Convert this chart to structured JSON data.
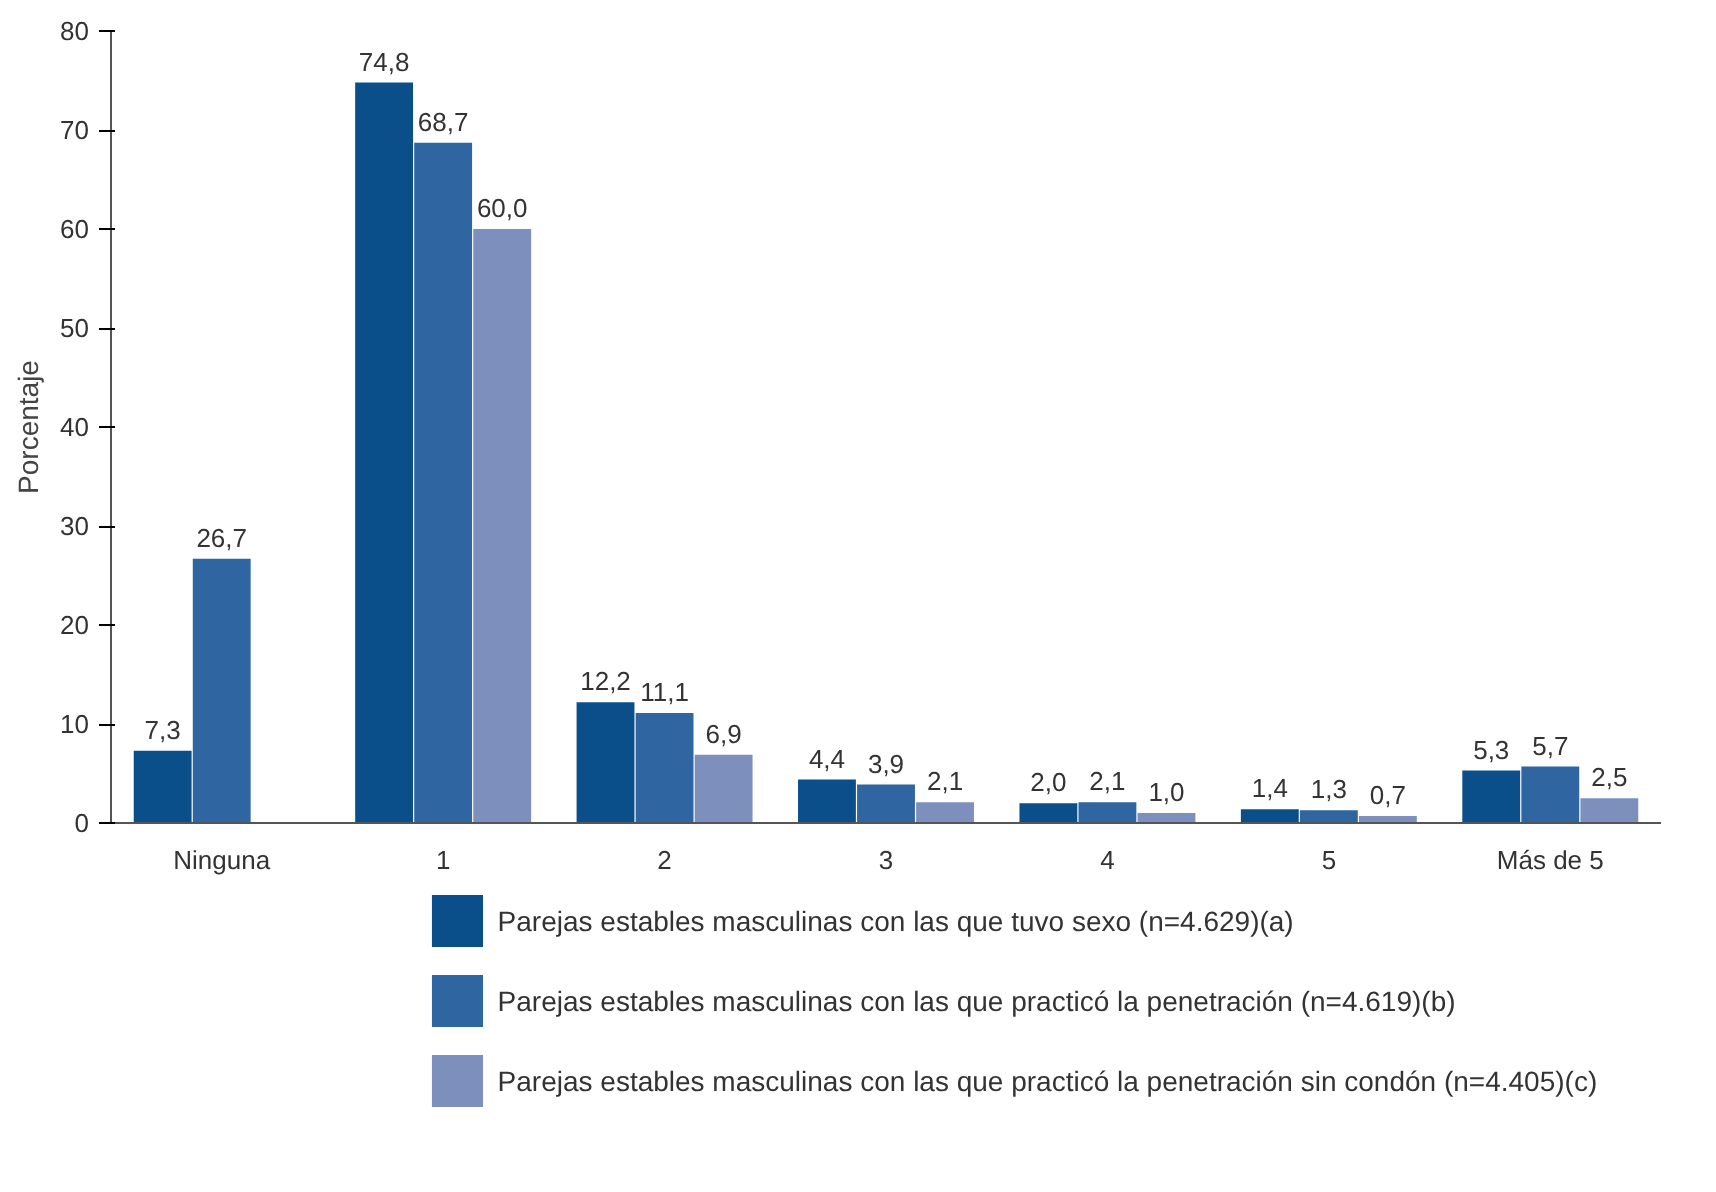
{
  "chart_data": {
    "type": "bar",
    "ylabel": "Porcentaje",
    "categories": [
      "Ninguna",
      "1",
      "2",
      "3",
      "4",
      "5",
      "Más de 5"
    ],
    "ylim": [
      0,
      80
    ],
    "yticks": [
      0,
      10,
      20,
      30,
      40,
      50,
      60,
      70,
      80
    ],
    "grid": false,
    "legend": "bottom",
    "series": [
      {
        "name": "Parejas estables masculinas con las que tuvo sexo (n=4.629)(a)",
        "color": "#0b4f8a",
        "values": [
          7.3,
          74.8,
          12.2,
          4.4,
          2.0,
          1.4,
          5.3
        ],
        "value_labels": [
          "7,3",
          "74,8",
          "12,2",
          "4,4",
          "2,0",
          "1,4",
          "5,3"
        ]
      },
      {
        "name": "Parejas estables masculinas con las que practicó la penetración (n=4.619)(b)",
        "color": "#2f66a2",
        "values": [
          26.7,
          68.7,
          11.1,
          3.9,
          2.1,
          1.3,
          5.7
        ],
        "value_labels": [
          "26,7",
          "68,7",
          "11,1",
          "3,9",
          "2,1",
          "1,3",
          "5,7"
        ]
      },
      {
        "name": "Parejas estables masculinas con las que practicó la penetración sin condón (n=4.405)(c)",
        "color": "#7d8fbd",
        "values": [
          null,
          60.0,
          6.9,
          2.1,
          1.0,
          0.7,
          2.5
        ],
        "value_labels": [
          null,
          "60,0",
          "6,9",
          "2,1",
          "1,0",
          "0,7",
          "2,5"
        ]
      }
    ]
  }
}
